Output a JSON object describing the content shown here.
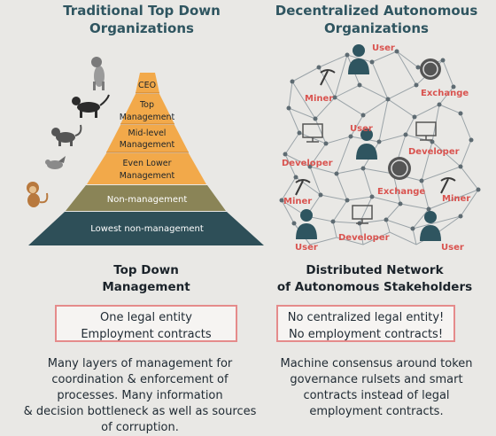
{
  "left": {
    "title_line1": "Traditional Top Down",
    "title_line2": "Organizations",
    "pyramid": [
      {
        "label": "CEO",
        "color": "#f2a94a"
      },
      {
        "label": "Top",
        "label2": "Management",
        "color": "#f2a94a"
      },
      {
        "label": "Mid-level",
        "label2": "Management",
        "color": "#f2a94a"
      },
      {
        "label": "Even Lower",
        "label2": "Management",
        "color": "#f2a94a"
      },
      {
        "label": "Non-management",
        "color": "#8a8457"
      },
      {
        "label": "Lowest non-management",
        "color": "#2e4f58"
      }
    ],
    "animals": [
      "dog-icon",
      "dog-icon",
      "cat-icon",
      "bird-icon",
      "monkey-icon"
    ],
    "subheading_line1": "Top Down",
    "subheading_line2": "Management",
    "box_line1": "One legal entity",
    "box_line2": "Employment contracts",
    "para_line1": "Many layers of management for",
    "para_line2": "coordination & enforcement of",
    "para_line3": "processes. Many information",
    "para_line4": "& decision bottleneck as well as sources",
    "para_line5": "of corruption."
  },
  "right": {
    "title_line1": "Decentralized Autonomous",
    "title_line2": "Organizations",
    "nodes": {
      "user_top": "User",
      "miner_left_top": "Miner",
      "exchange_top": "Exchange",
      "user_mid": "User",
      "developer_left": "Developer",
      "developer_right": "Developer",
      "miner_left_bottom": "Miner",
      "exchange_mid": "Exchange",
      "miner_right": "Miner",
      "user_bottom_left": "User",
      "developer_bottom": "Developer",
      "user_bottom_right": "User"
    },
    "subheading_line1": "Distributed Network",
    "subheading_line2": "of Autonomous Stakeholders",
    "box_line1": "No centralized legal entity!",
    "box_line2": "No employment contracts!",
    "para_line1": "Machine consensus around token",
    "para_line2": "governance rulsets and smart",
    "para_line3": "contracts instead of legal",
    "para_line4": "employment contracts."
  },
  "colors": {
    "title": "#2f5560",
    "orange": "#f2a94a",
    "olive": "#8a8457",
    "teal": "#2e4f58",
    "node_label": "#d9534f",
    "box_border": "#e58b8b",
    "person": "#2f5560"
  }
}
